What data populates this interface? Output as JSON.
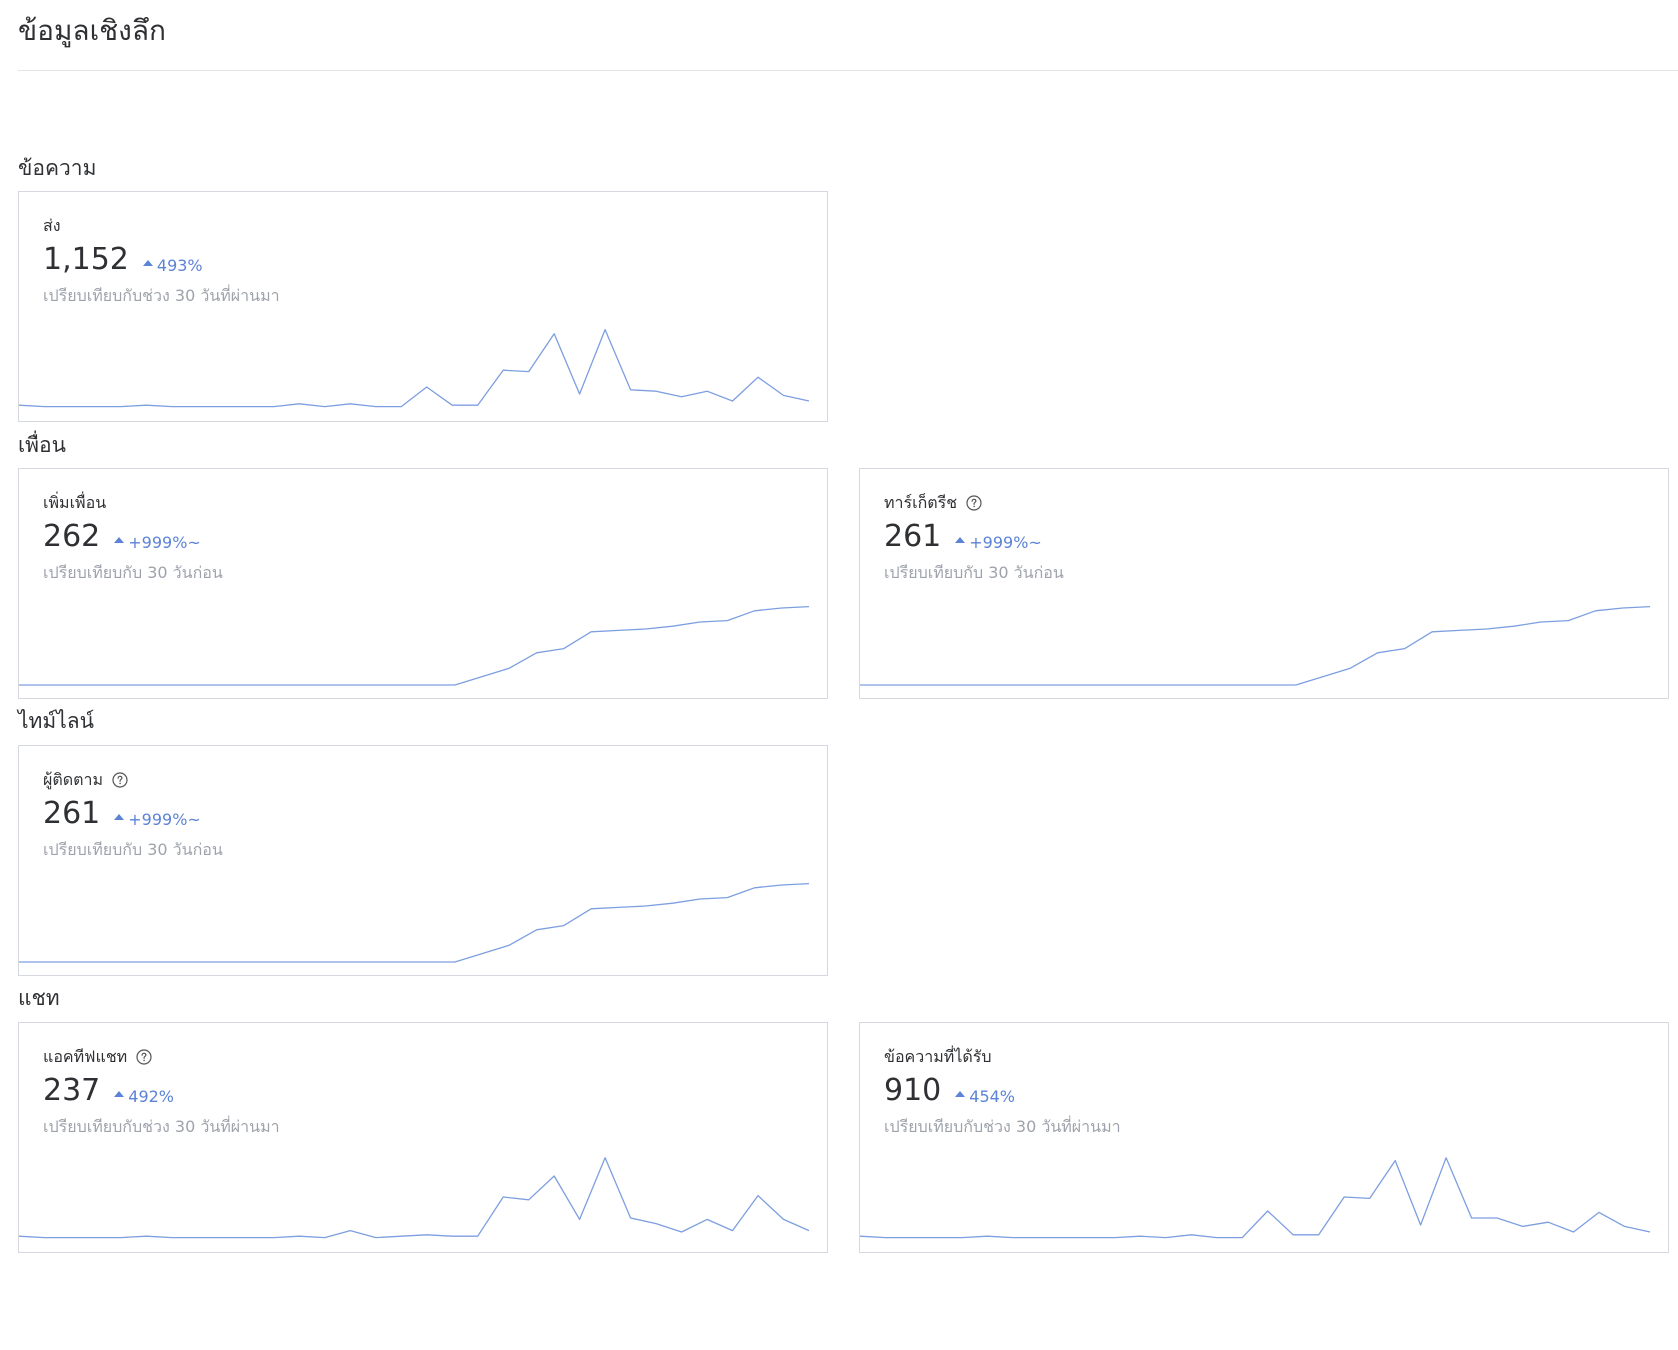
{
  "page": {
    "title": "ข้อมูลเชิงลึก"
  },
  "sections": {
    "messages": {
      "title": "ข้อความ",
      "sent": {
        "label": "ส่ง",
        "value": "1,152",
        "change": "493%",
        "comparison": "เปรียบเทียบกับช่วง 30 วันที่ผ่านมา"
      }
    },
    "friends": {
      "title": "เพื่อน",
      "added": {
        "label": "เพิ่มเพื่อน",
        "value": "262",
        "change": "+999%~",
        "comparison": "เปรียบเทียบกับ 30 วันก่อน"
      },
      "target_reach": {
        "label": "ทาร์เก็ตรีช",
        "value": "261",
        "change": "+999%~",
        "comparison": "เปรียบเทียบกับ 30 วันก่อน",
        "icon": "help-icon"
      }
    },
    "timeline": {
      "title": "ไทม์ไลน์",
      "followers": {
        "label": "ผู้ติดตาม",
        "value": "261",
        "change": "+999%~",
        "comparison": "เปรียบเทียบกับ 30 วันก่อน",
        "icon": "help-icon"
      }
    },
    "chat": {
      "title": "แชท",
      "active_chats": {
        "label": "แอคทีฟแชท",
        "value": "237",
        "change": "492%",
        "comparison": "เปรียบเทียบกับช่วง 30 วันที่ผ่านมา",
        "icon": "help-icon"
      },
      "received": {
        "label": "ข้อความที่ได้รับ",
        "value": "910",
        "change": "454%",
        "comparison": "เปรียบเทียบกับช่วง 30 วันที่ผ่านมา"
      }
    }
  },
  "colors": {
    "accent": "#5c83d6",
    "sparkline": "#7d9ee0",
    "muted_text": "#9ea3ab",
    "card_border": "#d5d8de"
  },
  "chart_data": [
    {
      "type": "line",
      "series": [
        {
          "values": [
            2,
            1,
            1,
            1,
            1,
            2,
            1,
            1,
            1,
            1,
            1,
            3,
            1,
            3,
            1,
            1,
            15,
            2,
            2,
            27,
            26,
            53,
            10,
            56,
            13,
            12,
            8,
            12,
            5,
            22,
            9,
            5
          ]
        }
      ],
      "ylim": [
        0,
        60
      ]
    },
    {
      "type": "line",
      "series": [
        {
          "values": [
            0,
            0,
            0,
            0,
            0,
            0,
            0,
            0,
            0,
            0,
            0,
            0,
            0,
            0,
            0,
            0,
            0,
            6,
            12,
            23,
            26,
            38,
            39,
            40,
            42,
            45,
            46,
            53,
            55,
            56
          ]
        }
      ],
      "ylim": [
        0,
        60
      ]
    },
    {
      "type": "line",
      "series": [
        {
          "values": [
            0,
            0,
            0,
            0,
            0,
            0,
            0,
            0,
            0,
            0,
            0,
            0,
            0,
            0,
            0,
            0,
            0,
            6,
            12,
            23,
            26,
            38,
            39,
            40,
            42,
            45,
            46,
            53,
            55,
            56
          ]
        }
      ],
      "ylim": [
        0,
        60
      ]
    },
    {
      "type": "line",
      "series": [
        {
          "values": [
            0,
            0,
            0,
            0,
            0,
            0,
            0,
            0,
            0,
            0,
            0,
            0,
            0,
            0,
            0,
            0,
            0,
            6,
            12,
            23,
            26,
            38,
            39,
            40,
            42,
            45,
            46,
            53,
            55,
            56
          ]
        }
      ],
      "ylim": [
        0,
        60
      ]
    },
    {
      "type": "line",
      "series": [
        {
          "values": [
            2,
            1,
            1,
            1,
            1,
            2,
            1,
            1,
            1,
            1,
            1,
            2,
            1,
            6,
            1,
            2,
            3,
            2,
            2,
            30,
            28,
            45,
            14,
            58,
            15,
            11,
            5,
            14,
            6,
            31,
            14,
            6
          ]
        }
      ],
      "ylim": [
        0,
        60
      ]
    },
    {
      "type": "line",
      "series": [
        {
          "values": [
            2,
            1,
            1,
            1,
            1,
            2,
            1,
            1,
            1,
            1,
            1,
            2,
            1,
            3,
            1,
            1,
            20,
            3,
            3,
            30,
            29,
            56,
            10,
            58,
            15,
            15,
            9,
            12,
            5,
            19,
            9,
            5
          ]
        }
      ],
      "ylim": [
        0,
        60
      ]
    }
  ]
}
